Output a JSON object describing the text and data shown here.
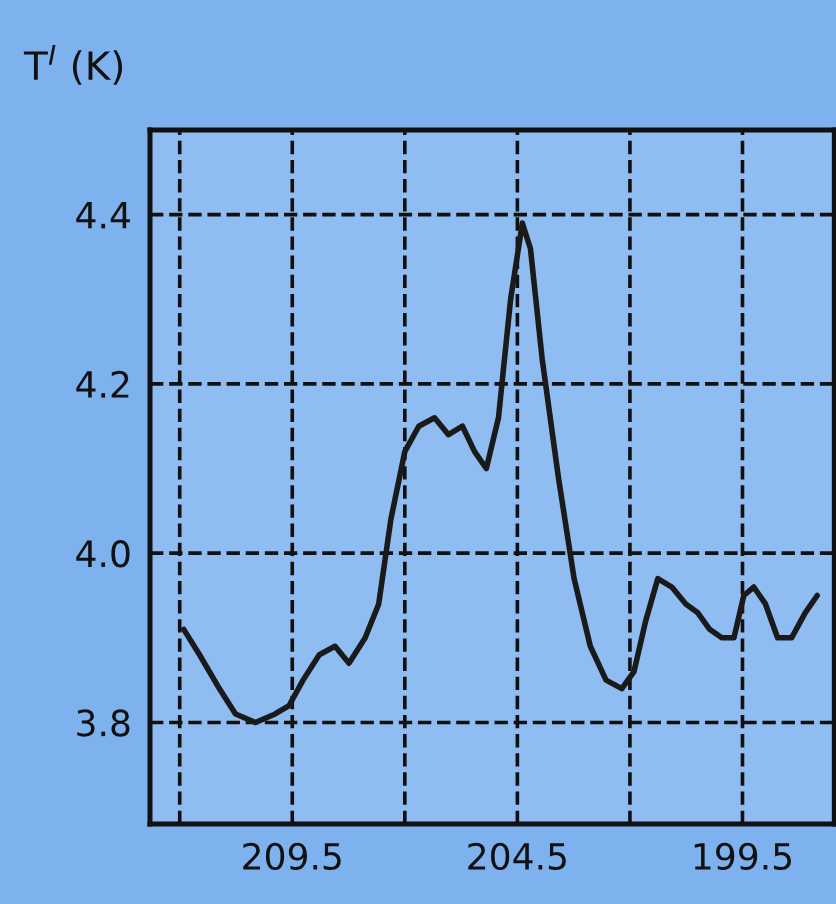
{
  "chart_data": {
    "type": "line",
    "ylabel": "T$^{I}$ (K)",
    "x": [
      211.91,
      211.56,
      211.12,
      210.76,
      210.32,
      209.88,
      209.57,
      209.26,
      208.9,
      208.55,
      208.24,
      207.88,
      207.58,
      207.31,
      207.0,
      206.69,
      206.34,
      206.03,
      205.72,
      205.45,
      205.19,
      204.92,
      204.65,
      204.39,
      204.21,
      203.95,
      203.59,
      203.24,
      202.88,
      202.53,
      202.18,
      201.91,
      201.65,
      201.38,
      201.07,
      200.76,
      200.5,
      200.23,
      199.96,
      199.69,
      199.47,
      199.25,
      198.99,
      198.72,
      198.41,
      198.1,
      197.84
    ],
    "series": [
      {
        "color": "#1a1a1a",
        "values": [
          3.91,
          3.88,
          3.84,
          3.81,
          3.8,
          3.81,
          3.82,
          3.85,
          3.88,
          3.89,
          3.87,
          3.9,
          3.94,
          4.04,
          4.12,
          4.15,
          4.16,
          4.14,
          4.15,
          4.12,
          4.1,
          4.16,
          4.3,
          4.39,
          4.36,
          4.23,
          4.09,
          3.97,
          3.89,
          3.85,
          3.84,
          3.86,
          3.92,
          3.97,
          3.96,
          3.94,
          3.93,
          3.91,
          3.9,
          3.9,
          3.95,
          3.96,
          3.94,
          3.9,
          3.9,
          3.93,
          3.95
        ]
      }
    ],
    "xlim": [
      212.66,
      197.46
    ],
    "xticks": [
      {
        "value": 212,
        "label": null
      },
      {
        "value": 209.5,
        "label": "209.5"
      },
      {
        "value": 207,
        "label": null
      },
      {
        "value": 204.5,
        "label": "204.5"
      },
      {
        "value": 202,
        "label": null
      },
      {
        "value": 199.5,
        "label": "199.5"
      }
    ],
    "ylim": [
      3.68,
      4.5
    ],
    "yticks": [
      {
        "value": 3.8,
        "label": "3.8"
      },
      {
        "value": 4.0,
        "label": "4.0"
      },
      {
        "value": 4.2,
        "label": "4.2"
      },
      {
        "value": 4.4,
        "label": "4.4"
      }
    ],
    "grid": true,
    "line_style": "solid",
    "marker": "none"
  }
}
